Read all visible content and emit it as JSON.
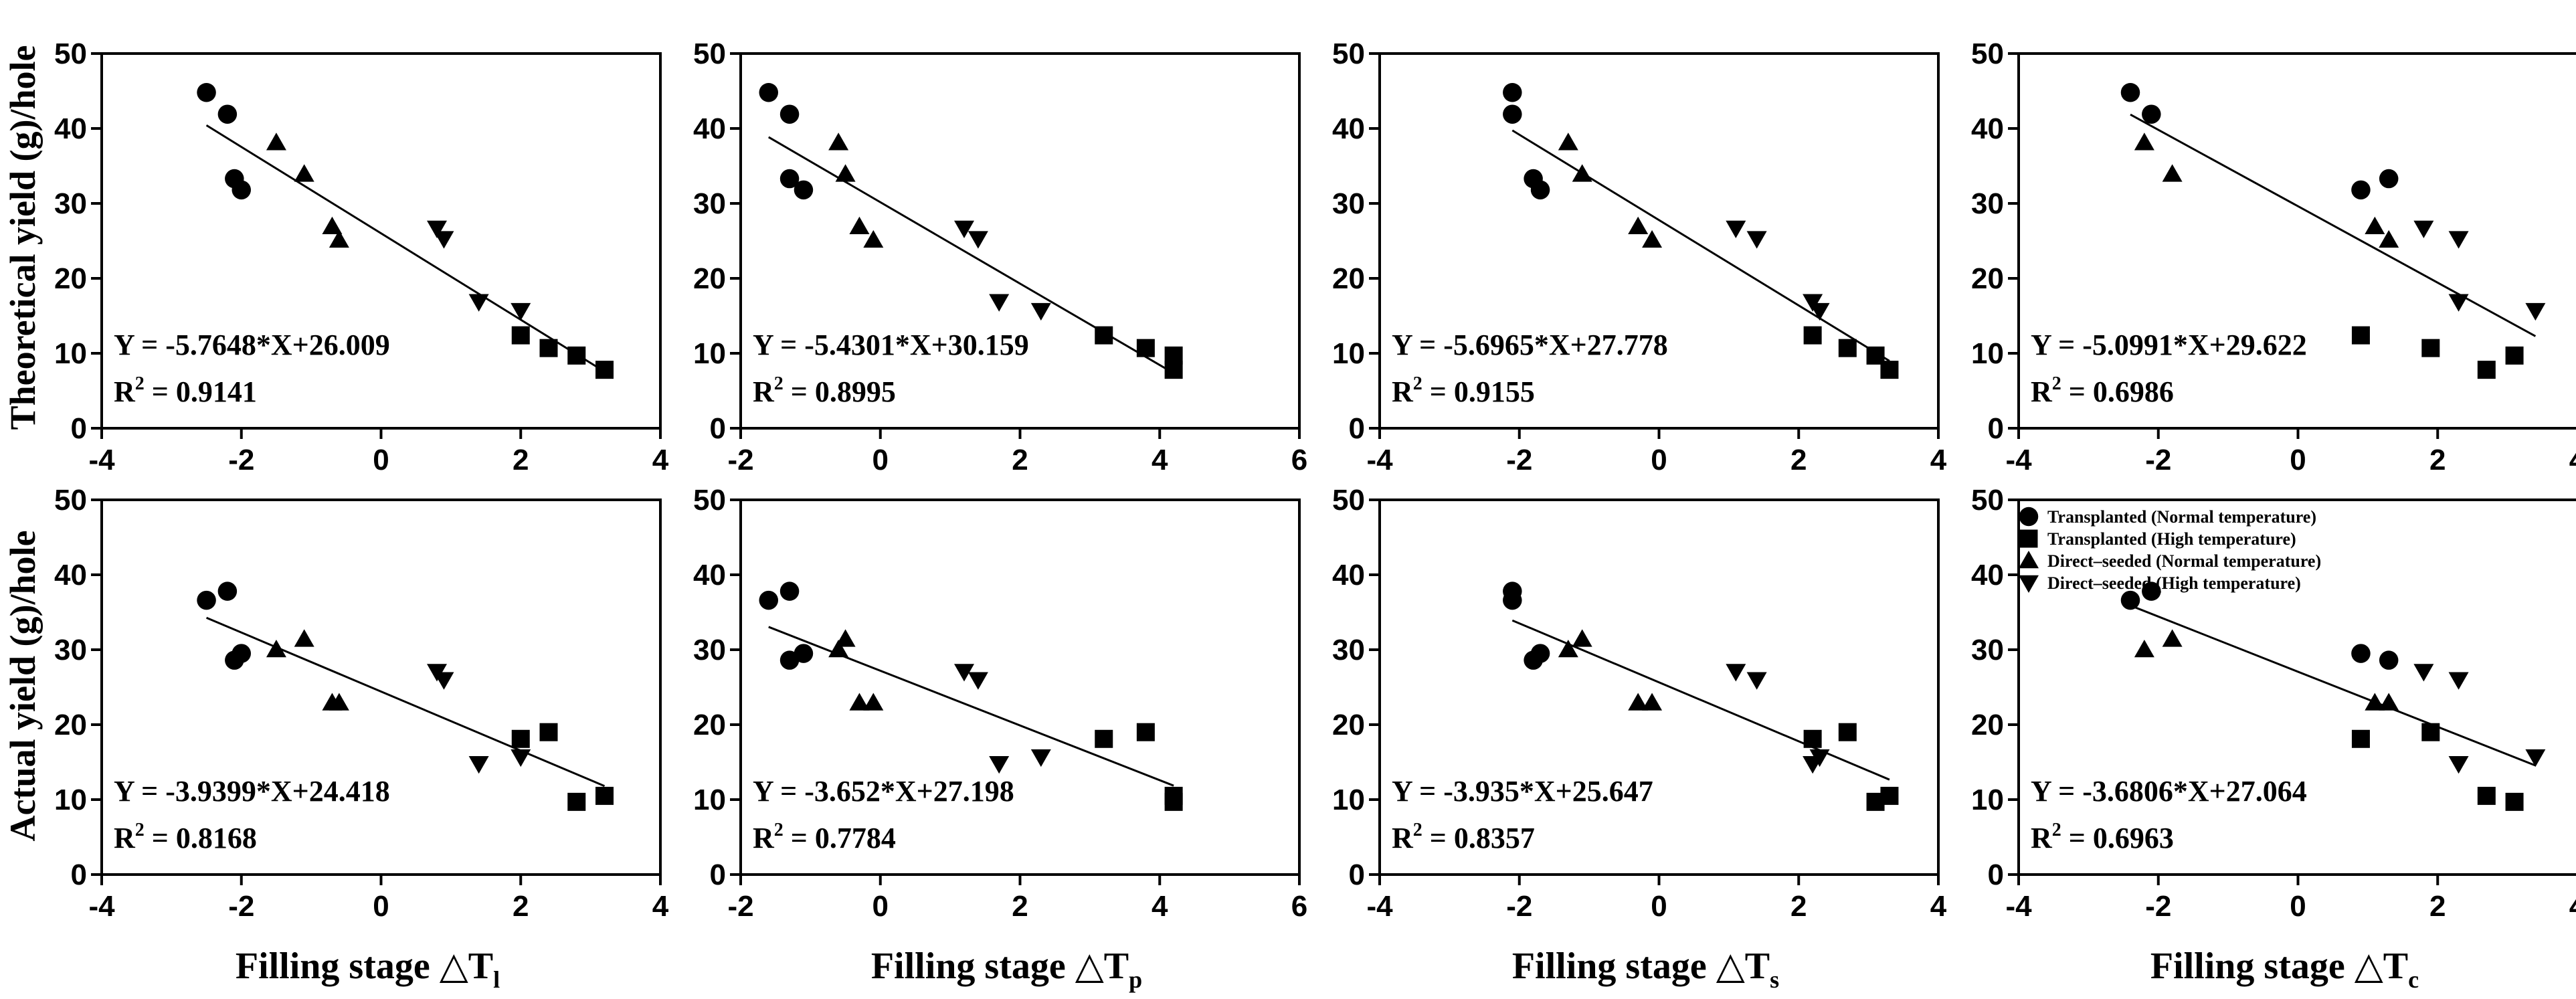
{
  "figure": {
    "ylabel_top": "Theoretical yield (g)/hole",
    "ylabel_bottom": "Actual yield (g)/hole",
    "colors": {
      "ink": "#000000",
      "background": "#ffffff"
    }
  },
  "legend": [
    {
      "marker": "circle",
      "label": "Transplanted (Normal temperature)"
    },
    {
      "marker": "square",
      "label": "Transplanted (High temperature)"
    },
    {
      "marker": "triangle-up",
      "label": "Direct–seeded (Normal temperature)"
    },
    {
      "marker": "triangle-down",
      "label": "Direct–seeded (High temperature)"
    }
  ],
  "xlabels": [
    {
      "text": "Filling stage △T",
      "sub": "l"
    },
    {
      "text": "Filling stage △T",
      "sub": "p"
    },
    {
      "text": "Filling stage △T",
      "sub": "s"
    },
    {
      "text": "Filling stage △T",
      "sub": "c"
    }
  ],
  "chart_data": [
    {
      "type": "scatter",
      "row": 0,
      "col": 0,
      "xlim": [
        -4,
        4
      ],
      "xticks": [
        -4,
        -2,
        0,
        2,
        4
      ],
      "ylim": [
        0,
        50
      ],
      "yticks": [
        0,
        10,
        20,
        30,
        40,
        50
      ],
      "equation": "Y = -5.7648*X+26.009",
      "r2_label": "R",
      "r2_value": " = 0.9141",
      "fit": {
        "slope": -5.7648,
        "intercept": 26.009,
        "x_range": [
          -2.5,
          3.2
        ]
      },
      "series": [
        {
          "name": "Transplanted (Normal temperature)",
          "marker": "circle",
          "points": [
            [
              -2.5,
              44.8
            ],
            [
              -2.2,
              41.9
            ],
            [
              -2.1,
              33.3
            ],
            [
              -2.0,
              31.8
            ]
          ]
        },
        {
          "name": "Transplanted (High temperature)",
          "marker": "square",
          "points": [
            [
              2.0,
              12.4
            ],
            [
              2.4,
              10.7
            ],
            [
              2.8,
              9.7
            ],
            [
              3.2,
              7.8
            ]
          ]
        },
        {
          "name": "Direct–seeded (Normal temperature)",
          "marker": "triangle-up",
          "points": [
            [
              -1.5,
              38.1
            ],
            [
              -1.1,
              33.9
            ],
            [
              -0.7,
              26.9
            ],
            [
              -0.6,
              25.1
            ]
          ]
        },
        {
          "name": "Direct–seeded (High temperature)",
          "marker": "triangle-down",
          "points": [
            [
              0.8,
              26.7
            ],
            [
              0.9,
              25.3
            ],
            [
              1.4,
              16.9
            ],
            [
              2.0,
              15.7
            ]
          ]
        }
      ]
    },
    {
      "type": "scatter",
      "row": 0,
      "col": 1,
      "xlim": [
        -2,
        6
      ],
      "xticks": [
        -2,
        0,
        2,
        4,
        6
      ],
      "ylim": [
        0,
        50
      ],
      "yticks": [
        0,
        10,
        20,
        30,
        40,
        50
      ],
      "equation": "Y = -5.4301*X+30.159",
      "r2_label": "R",
      "r2_value": " = 0.8995",
      "fit": {
        "slope": -5.4301,
        "intercept": 30.159,
        "x_range": [
          -1.6,
          4.2
        ]
      },
      "series": [
        {
          "name": "Transplanted (Normal temperature)",
          "marker": "circle",
          "points": [
            [
              -1.6,
              44.8
            ],
            [
              -1.3,
              41.9
            ],
            [
              -1.3,
              33.3
            ],
            [
              -1.1,
              31.8
            ]
          ]
        },
        {
          "name": "Transplanted (High temperature)",
          "marker": "square",
          "points": [
            [
              3.2,
              12.4
            ],
            [
              3.8,
              10.7
            ],
            [
              4.2,
              9.7
            ],
            [
              4.2,
              7.8
            ]
          ]
        },
        {
          "name": "Direct–seeded (Normal temperature)",
          "marker": "triangle-up",
          "points": [
            [
              -0.6,
              38.1
            ],
            [
              -0.5,
              33.9
            ],
            [
              -0.3,
              26.9
            ],
            [
              -0.1,
              25.1
            ]
          ]
        },
        {
          "name": "Direct–seeded (High temperature)",
          "marker": "triangle-down",
          "points": [
            [
              1.2,
              26.7
            ],
            [
              1.4,
              25.3
            ],
            [
              1.7,
              16.9
            ],
            [
              2.3,
              15.7
            ]
          ]
        }
      ]
    },
    {
      "type": "scatter",
      "row": 0,
      "col": 2,
      "xlim": [
        -4,
        4
      ],
      "xticks": [
        -4,
        -2,
        0,
        2,
        4
      ],
      "ylim": [
        0,
        50
      ],
      "yticks": [
        0,
        10,
        20,
        30,
        40,
        50
      ],
      "equation": "Y = -5.6965*X+27.778",
      "r2_label": "R",
      "r2_value": " = 0.9155",
      "fit": {
        "slope": -5.6965,
        "intercept": 27.778,
        "x_range": [
          -2.1,
          3.3
        ]
      },
      "series": [
        {
          "name": "Transplanted (Normal temperature)",
          "marker": "circle",
          "points": [
            [
              -2.1,
              44.8
            ],
            [
              -2.1,
              41.9
            ],
            [
              -1.8,
              33.3
            ],
            [
              -1.7,
              31.8
            ]
          ]
        },
        {
          "name": "Transplanted (High temperature)",
          "marker": "square",
          "points": [
            [
              2.2,
              12.4
            ],
            [
              2.7,
              10.7
            ],
            [
              3.1,
              9.7
            ],
            [
              3.3,
              7.8
            ]
          ]
        },
        {
          "name": "Direct–seeded (Normal temperature)",
          "marker": "triangle-up",
          "points": [
            [
              -1.3,
              38.1
            ],
            [
              -1.1,
              33.9
            ],
            [
              -0.3,
              26.9
            ],
            [
              -0.1,
              25.1
            ]
          ]
        },
        {
          "name": "Direct–seeded (High temperature)",
          "marker": "triangle-down",
          "points": [
            [
              1.1,
              26.7
            ],
            [
              1.4,
              25.3
            ],
            [
              2.2,
              16.9
            ],
            [
              2.3,
              15.7
            ]
          ]
        }
      ]
    },
    {
      "type": "scatter",
      "row": 0,
      "col": 3,
      "xlim": [
        -4,
        4
      ],
      "xticks": [
        -4,
        -2,
        0,
        2,
        4
      ],
      "ylim": [
        0,
        50
      ],
      "yticks": [
        0,
        10,
        20,
        30,
        40,
        50
      ],
      "equation": "Y = -5.0991*X+29.622",
      "r2_label": "R",
      "r2_value": " = 0.6986",
      "fit": {
        "slope": -5.0991,
        "intercept": 29.622,
        "x_range": [
          -2.4,
          3.4
        ]
      },
      "series": [
        {
          "name": "Transplanted (Normal temperature)",
          "marker": "circle",
          "points": [
            [
              -2.4,
              44.8
            ],
            [
              -2.1,
              41.9
            ],
            [
              1.3,
              33.3
            ],
            [
              0.9,
              31.8
            ]
          ]
        },
        {
          "name": "Transplanted (High temperature)",
          "marker": "square",
          "points": [
            [
              0.9,
              12.4
            ],
            [
              1.9,
              10.7
            ],
            [
              3.1,
              9.7
            ],
            [
              2.7,
              7.8
            ]
          ]
        },
        {
          "name": "Direct–seeded (Normal temperature)",
          "marker": "triangle-up",
          "points": [
            [
              -2.2,
              38.1
            ],
            [
              -1.8,
              33.9
            ],
            [
              1.1,
              26.9
            ],
            [
              1.3,
              25.1
            ]
          ]
        },
        {
          "name": "Direct–seeded (High temperature)",
          "marker": "triangle-down",
          "points": [
            [
              1.8,
              26.7
            ],
            [
              2.3,
              25.3
            ],
            [
              2.3,
              16.9
            ],
            [
              3.4,
              15.7
            ]
          ]
        }
      ]
    },
    {
      "type": "scatter",
      "row": 1,
      "col": 0,
      "xlim": [
        -4,
        4
      ],
      "xticks": [
        -4,
        -2,
        0,
        2,
        4
      ],
      "ylim": [
        0,
        50
      ],
      "yticks": [
        0,
        10,
        20,
        30,
        40,
        50
      ],
      "equation": "Y = -3.9399*X+24.418",
      "r2_label": "R",
      "r2_value": " = 0.8168",
      "fit": {
        "slope": -3.9399,
        "intercept": 24.418,
        "x_range": [
          -2.5,
          3.2
        ]
      },
      "series": [
        {
          "name": "Transplanted (Normal temperature)",
          "marker": "circle",
          "points": [
            [
              -2.5,
              36.6
            ],
            [
              -2.2,
              37.8
            ],
            [
              -2.1,
              28.6
            ],
            [
              -2.0,
              29.5
            ]
          ]
        },
        {
          "name": "Transplanted (High temperature)",
          "marker": "square",
          "points": [
            [
              2.0,
              18.1
            ],
            [
              2.4,
              19.0
            ],
            [
              2.8,
              9.7
            ],
            [
              3.2,
              10.5
            ]
          ]
        },
        {
          "name": "Direct–seeded (Normal temperature)",
          "marker": "triangle-up",
          "points": [
            [
              -1.5,
              30.0
            ],
            [
              -1.1,
              31.4
            ],
            [
              -0.7,
              22.9
            ],
            [
              -0.6,
              22.9
            ]
          ]
        },
        {
          "name": "Direct–seeded (High temperature)",
          "marker": "triangle-down",
          "points": [
            [
              0.8,
              27.1
            ],
            [
              0.9,
              26.0
            ],
            [
              1.4,
              14.8
            ],
            [
              2.0,
              15.7
            ]
          ]
        }
      ]
    },
    {
      "type": "scatter",
      "row": 1,
      "col": 1,
      "xlim": [
        -2,
        6
      ],
      "xticks": [
        -2,
        0,
        2,
        4,
        6
      ],
      "ylim": [
        0,
        50
      ],
      "yticks": [
        0,
        10,
        20,
        30,
        40,
        50
      ],
      "equation": "Y = -3.652*X+27.198",
      "r2_label": "R",
      "r2_value": " = 0.7784",
      "fit": {
        "slope": -3.652,
        "intercept": 27.198,
        "x_range": [
          -1.6,
          4.2
        ]
      },
      "series": [
        {
          "name": "Transplanted (Normal temperature)",
          "marker": "circle",
          "points": [
            [
              -1.6,
              36.6
            ],
            [
              -1.3,
              37.8
            ],
            [
              -1.3,
              28.6
            ],
            [
              -1.1,
              29.5
            ]
          ]
        },
        {
          "name": "Transplanted (High temperature)",
          "marker": "square",
          "points": [
            [
              3.2,
              18.1
            ],
            [
              3.8,
              19.0
            ],
            [
              4.2,
              9.7
            ],
            [
              4.2,
              10.5
            ]
          ]
        },
        {
          "name": "Direct–seeded (Normal temperature)",
          "marker": "triangle-up",
          "points": [
            [
              -0.6,
              30.0
            ],
            [
              -0.5,
              31.4
            ],
            [
              -0.3,
              22.9
            ],
            [
              -0.1,
              22.9
            ]
          ]
        },
        {
          "name": "Direct–seeded (High temperature)",
          "marker": "triangle-down",
          "points": [
            [
              1.2,
              27.1
            ],
            [
              1.4,
              26.0
            ],
            [
              1.7,
              14.8
            ],
            [
              2.3,
              15.7
            ]
          ]
        }
      ]
    },
    {
      "type": "scatter",
      "row": 1,
      "col": 2,
      "xlim": [
        -4,
        4
      ],
      "xticks": [
        -4,
        -2,
        0,
        2,
        4
      ],
      "ylim": [
        0,
        50
      ],
      "yticks": [
        0,
        10,
        20,
        30,
        40,
        50
      ],
      "equation": "Y = -3.935*X+25.647",
      "r2_label": "R",
      "r2_value": " = 0.8357",
      "fit": {
        "slope": -3.935,
        "intercept": 25.647,
        "x_range": [
          -2.1,
          3.3
        ]
      },
      "series": [
        {
          "name": "Transplanted (Normal temperature)",
          "marker": "circle",
          "points": [
            [
              -2.1,
              36.6
            ],
            [
              -2.1,
              37.8
            ],
            [
              -1.8,
              28.6
            ],
            [
              -1.7,
              29.5
            ]
          ]
        },
        {
          "name": "Transplanted (High temperature)",
          "marker": "square",
          "points": [
            [
              2.2,
              18.1
            ],
            [
              2.7,
              19.0
            ],
            [
              3.1,
              9.7
            ],
            [
              3.3,
              10.5
            ]
          ]
        },
        {
          "name": "Direct–seeded (Normal temperature)",
          "marker": "triangle-up",
          "points": [
            [
              -1.3,
              30.0
            ],
            [
              -1.1,
              31.4
            ],
            [
              -0.3,
              22.9
            ],
            [
              -0.1,
              22.9
            ]
          ]
        },
        {
          "name": "Direct–seeded (High temperature)",
          "marker": "triangle-down",
          "points": [
            [
              1.1,
              27.1
            ],
            [
              1.4,
              26.0
            ],
            [
              2.2,
              14.8
            ],
            [
              2.3,
              15.7
            ]
          ]
        }
      ]
    },
    {
      "type": "scatter",
      "row": 1,
      "col": 3,
      "xlim": [
        -4,
        4
      ],
      "xticks": [
        -4,
        -2,
        0,
        2,
        4
      ],
      "ylim": [
        0,
        50
      ],
      "yticks": [
        0,
        10,
        20,
        30,
        40,
        50
      ],
      "equation": "Y = -3.6806*X+27.064",
      "r2_label": "R",
      "r2_value": " = 0.6963",
      "fit": {
        "slope": -3.6806,
        "intercept": 27.064,
        "x_range": [
          -2.4,
          3.4
        ]
      },
      "series": [
        {
          "name": "Transplanted (Normal temperature)",
          "marker": "circle",
          "points": [
            [
              -2.4,
              36.6
            ],
            [
              -2.1,
              37.8
            ],
            [
              1.3,
              28.6
            ],
            [
              0.9,
              29.5
            ]
          ]
        },
        {
          "name": "Transplanted (High temperature)",
          "marker": "square",
          "points": [
            [
              0.9,
              18.1
            ],
            [
              1.9,
              19.0
            ],
            [
              3.1,
              9.7
            ],
            [
              2.7,
              10.5
            ]
          ]
        },
        {
          "name": "Direct–seeded (Normal temperature)",
          "marker": "triangle-up",
          "points": [
            [
              -2.2,
              30.0
            ],
            [
              -1.8,
              31.4
            ],
            [
              1.1,
              22.9
            ],
            [
              1.3,
              22.9
            ]
          ]
        },
        {
          "name": "Direct–seeded (High temperature)",
          "marker": "triangle-down",
          "points": [
            [
              1.8,
              27.1
            ],
            [
              2.3,
              26.0
            ],
            [
              2.3,
              14.8
            ],
            [
              3.4,
              15.7
            ]
          ]
        }
      ]
    }
  ]
}
